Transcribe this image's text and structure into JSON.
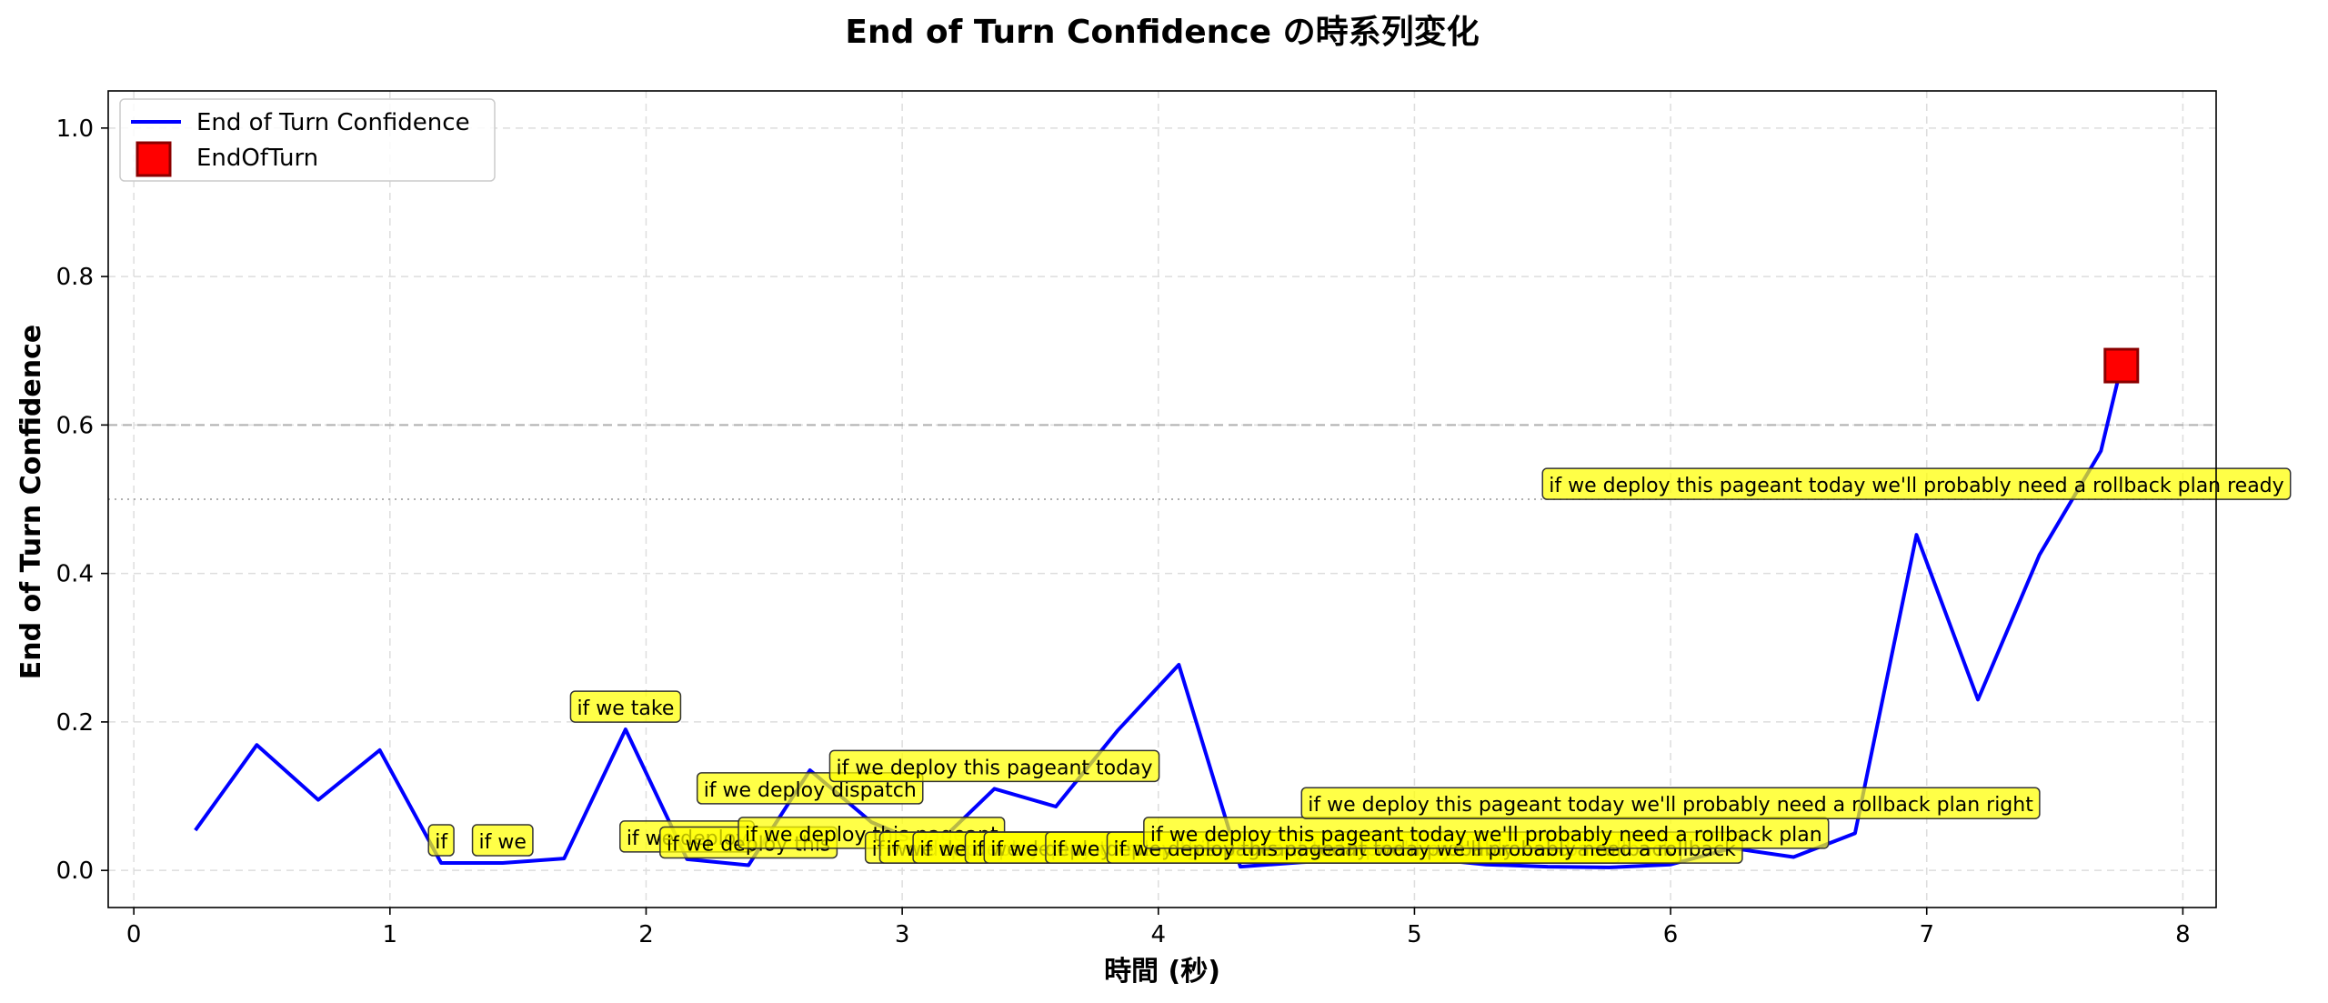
{
  "chart_data": {
    "type": "line",
    "title": "End of Turn Confidence の時系列変化",
    "xlabel": "時間 (秒)",
    "ylabel": "End of Turn Confidence",
    "xlim": [
      -0.1,
      8.13
    ],
    "ylim": [
      -0.05,
      1.05
    ],
    "xticks": [
      0,
      1,
      2,
      3,
      4,
      5,
      6,
      7,
      8
    ],
    "yticks": [
      0.0,
      0.2,
      0.4,
      0.6,
      0.8,
      1.0
    ],
    "xtick_labels": [
      "0",
      "1",
      "2",
      "3",
      "4",
      "5",
      "6",
      "7",
      "8"
    ],
    "ytick_labels": [
      "0.0",
      "0.2",
      "0.4",
      "0.6",
      "0.8",
      "1.0"
    ],
    "grid": true,
    "legend_placement": "top-left",
    "reference_lines": [
      {
        "y": 0.6,
        "style": "dashed",
        "color": "#b0b0b0"
      },
      {
        "y": 0.5,
        "style": "dotted",
        "color": "#b0b0b0"
      }
    ],
    "series": [
      {
        "name": "End of Turn Confidence",
        "color": "#0000ff",
        "x": [
          0.24,
          0.48,
          0.72,
          0.96,
          1.2,
          1.44,
          1.68,
          1.92,
          2.16,
          2.4,
          2.64,
          2.88,
          3.12,
          3.36,
          3.6,
          3.84,
          4.08,
          4.32,
          4.56,
          4.8,
          5.04,
          5.28,
          5.52,
          5.76,
          6.0,
          6.24,
          6.48,
          6.72,
          6.96,
          7.2,
          7.44,
          7.68,
          7.76
        ],
        "y": [
          0.054,
          0.169,
          0.095,
          0.162,
          0.01,
          0.01,
          0.016,
          0.19,
          0.015,
          0.007,
          0.135,
          0.065,
          0.03,
          0.11,
          0.086,
          0.188,
          0.277,
          0.005,
          0.011,
          0.015,
          0.016,
          0.008,
          0.005,
          0.004,
          0.008,
          0.03,
          0.018,
          0.05,
          0.452,
          0.23,
          0.425,
          0.565,
          0.68
        ]
      }
    ],
    "end_marker": {
      "name": "EndOfTurn",
      "x": 7.76,
      "y": 0.68,
      "color": "#ff0000",
      "edge": "#8b0000"
    },
    "annotations": [
      {
        "text": "if",
        "x": 1.2,
        "y": 0.01
      },
      {
        "text": "if we",
        "x": 1.44,
        "y": 0.01
      },
      {
        "text": "if we take",
        "x": 1.92,
        "y": 0.19
      },
      {
        "text": "if we deploy",
        "x": 2.16,
        "y": 0.015
      },
      {
        "text": "if we deploy this",
        "x": 2.4,
        "y": 0.007
      },
      {
        "text": "if we deploy dispatch",
        "x": 2.64,
        "y": 0.08
      },
      {
        "text": "if we deploy this pageant",
        "x": 2.88,
        "y": 0.02
      },
      {
        "text": "if we deploy this pageant today",
        "x": 3.36,
        "y": 0.11
      },
      {
        "text": "if we deploy this pageant today we'll",
        "x": 3.6,
        "y": 0.0
      },
      {
        "text": "if we deploy this pageant today we'll probably",
        "x": 3.84,
        "y": 0.0
      },
      {
        "text": "if we deploy this pageant today we'll probably need",
        "x": 4.08,
        "y": 0.0
      },
      {
        "text": "if we deploy this pageant today we'll probably need a",
        "x": 4.32,
        "y": 0.0
      },
      {
        "text": "if we deploy this pageant today we'll probably need a rollback",
        "x": 4.56,
        "y": 0.0
      },
      {
        "text": "if we deploy this pageant today we'll probably need a rollback",
        "x": 4.8,
        "y": 0.0
      },
      {
        "text": "if we deploy this pageant today we'll probably need a rollback",
        "x": 5.04,
        "y": 0.0
      },
      {
        "text": "if we deploy this pageant today we'll probably need a rollback plan",
        "x": 5.28,
        "y": 0.02
      },
      {
        "text": "if we deploy this pageant today we'll probably need a rollback plan right",
        "x": 6.0,
        "y": 0.06
      },
      {
        "text": "if we deploy this pageant today we'll probably need a rollback plan ready",
        "x": 6.96,
        "y": 0.49
      }
    ]
  },
  "legend": {
    "line_label": "End of Turn Confidence",
    "marker_label": "EndOfTurn"
  }
}
